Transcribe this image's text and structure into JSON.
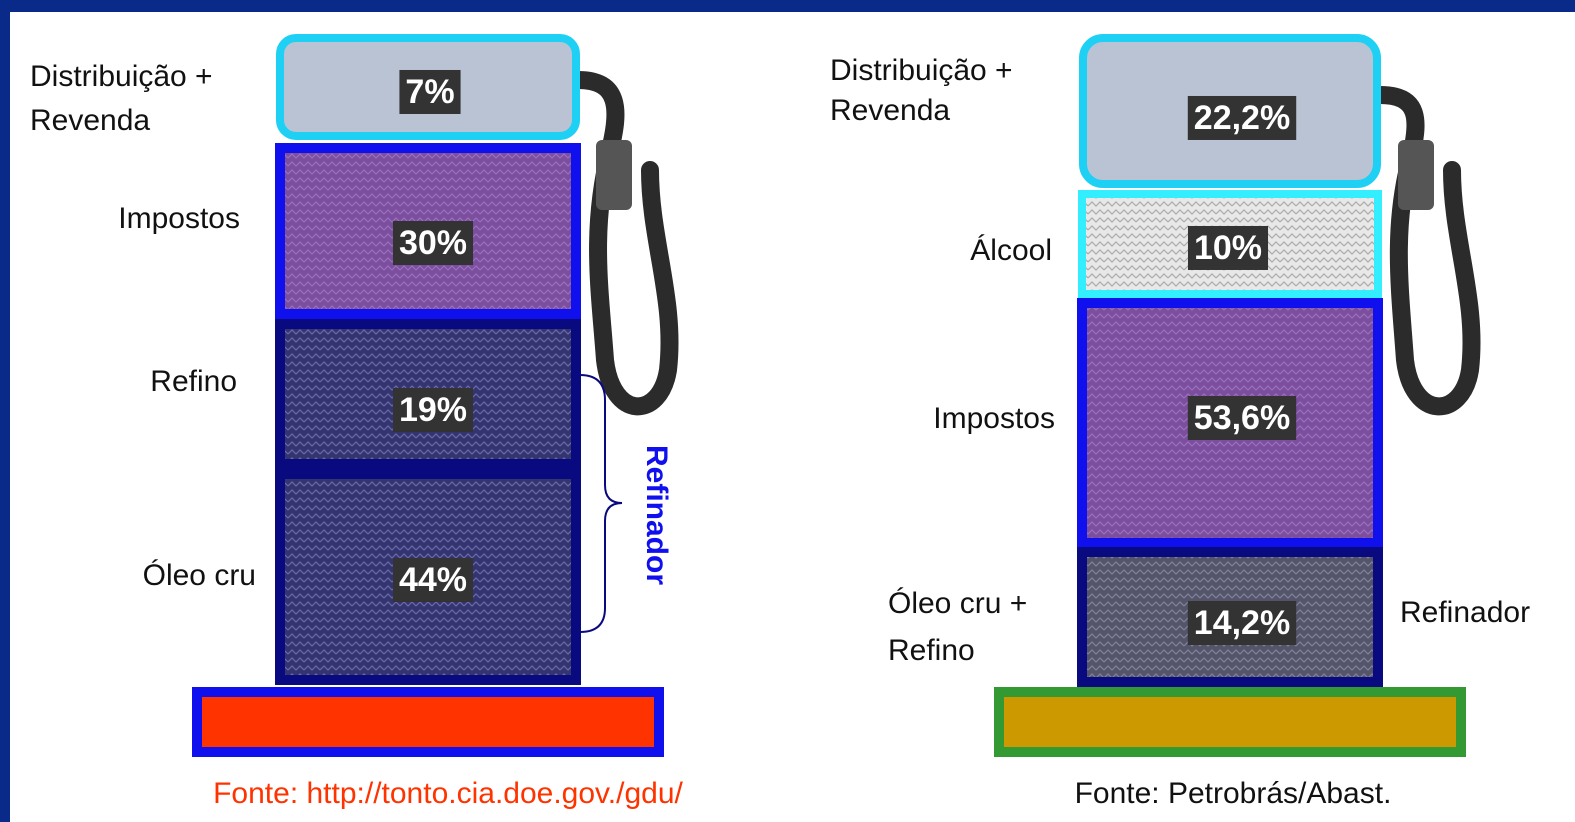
{
  "left": {
    "segments": [
      {
        "label": [
          "Distribuição +",
          "Revenda"
        ],
        "value": "7%"
      },
      {
        "label": [
          "Impostos"
        ],
        "value": "30%"
      },
      {
        "label": [
          "Refino"
        ],
        "value": "19%"
      },
      {
        "label": [
          "Óleo cru"
        ],
        "value": "44%"
      }
    ],
    "bracket_label": "Refinador",
    "source": "Fonte: http://tonto.cia.doe.gov./gdu/"
  },
  "right": {
    "segments": [
      {
        "label": [
          "Distribuição +",
          "Revenda"
        ],
        "value": "22,2%"
      },
      {
        "label": [
          "Álcool"
        ],
        "value": "10%"
      },
      {
        "label": [
          "Impostos"
        ],
        "value": "53,6%"
      },
      {
        "label": [
          "Óleo cru +",
          "Refino"
        ],
        "value": "14,2%"
      }
    ],
    "side_label": "Refinador",
    "source": "Fonte: Petrobrás/Abast."
  }
}
